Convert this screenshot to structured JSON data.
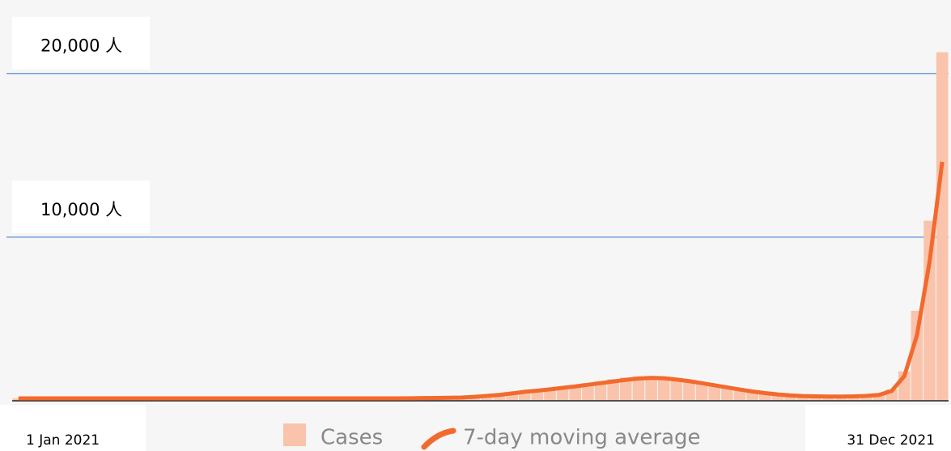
{
  "chart_data": {
    "type": "bar_line",
    "categories": [
      "1 Jan 2021",
      null,
      null,
      null,
      null,
      null,
      null,
      null,
      null,
      null,
      null,
      null,
      null,
      null,
      null,
      null,
      null,
      null,
      null,
      null,
      null,
      null,
      null,
      null,
      null,
      null,
      null,
      null,
      null,
      null,
      null,
      null,
      null,
      null,
      null,
      null,
      null,
      null,
      null,
      null,
      null,
      null,
      null,
      null,
      null,
      null,
      null,
      null,
      null,
      null,
      null,
      null,
      null,
      null,
      null,
      null,
      null,
      null,
      null,
      null,
      null,
      null,
      null,
      null,
      null,
      null,
      null,
      null,
      null,
      null,
      null,
      null,
      null,
      "31 Dec 2021"
    ],
    "series": [
      {
        "name": "Cases",
        "color": "#f9c4ab",
        "values": [
          150,
          160,
          140,
          170,
          150,
          130,
          160,
          150,
          140,
          150,
          160,
          140,
          150,
          130,
          150,
          160,
          150,
          140,
          150,
          160,
          150,
          140,
          150,
          160,
          150,
          140,
          150,
          160,
          150,
          140,
          150,
          160,
          170,
          180,
          190,
          220,
          260,
          320,
          380,
          470,
          580,
          650,
          760,
          860,
          960,
          1080,
          1200,
          1320,
          1420,
          1500,
          1520,
          1480,
          1380,
          1250,
          1100,
          950,
          800,
          650,
          520,
          420,
          340,
          290,
          250,
          240,
          240,
          250,
          260,
          300,
          380,
          700,
          1800,
          5500,
          11000,
          21300
        ]
      },
      {
        "name": "7-day moving average",
        "color": "#f26a2e",
        "values": [
          150,
          150,
          150,
          150,
          150,
          150,
          150,
          150,
          150,
          150,
          150,
          150,
          150,
          150,
          150,
          150,
          150,
          150,
          150,
          150,
          150,
          150,
          150,
          150,
          150,
          150,
          150,
          150,
          150,
          150,
          150,
          155,
          165,
          175,
          185,
          200,
          240,
          300,
          360,
          450,
          550,
          620,
          700,
          790,
          880,
          980,
          1080,
          1180,
          1280,
          1360,
          1400,
          1380,
          1300,
          1200,
          1080,
          950,
          820,
          690,
          570,
          470,
          390,
          330,
          290,
          270,
          260,
          260,
          270,
          300,
          360,
          600,
          1500,
          4000,
          8500,
          14600
        ]
      }
    ],
    "ylim": [
      0,
      23500
    ],
    "yticks": [
      {
        "value": 10000,
        "label": "10,000 人"
      },
      {
        "value": 20000,
        "label": "20,000 人"
      }
    ],
    "grid": true
  }
}
